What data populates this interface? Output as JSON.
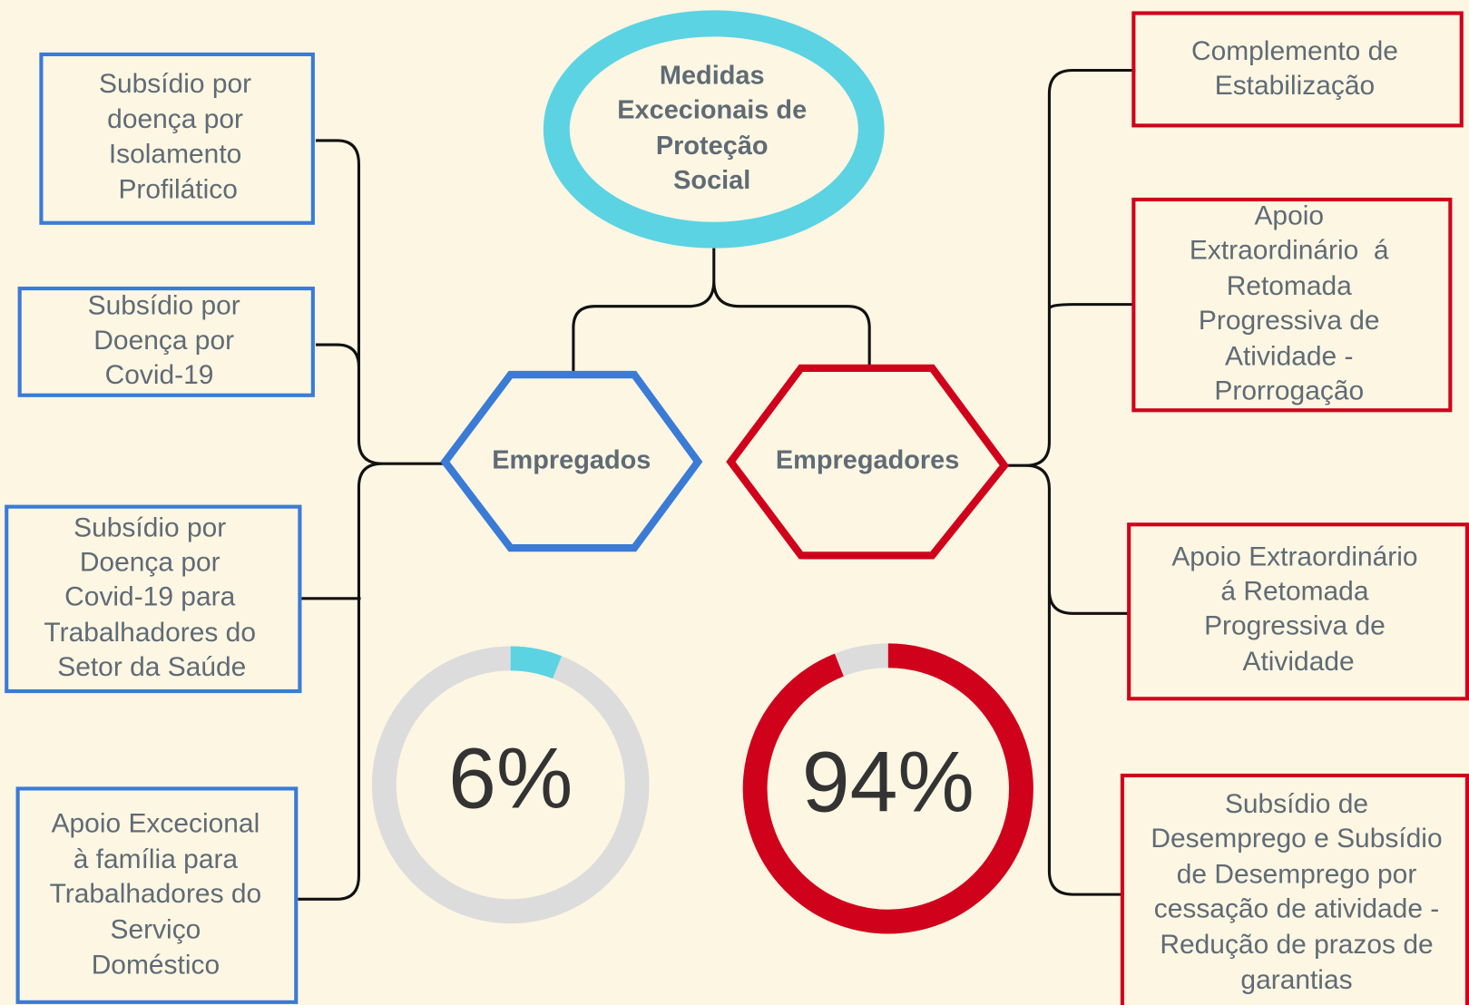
{
  "root": {
    "lines": [
      "Medidas",
      "Excecionais de",
      "Proteção",
      "Social"
    ]
  },
  "groups": [
    {
      "label": "Empregados",
      "items": [
        {
          "lines": [
            "Subsídio por",
            "doença por",
            "Isolamento",
            "Profilático"
          ]
        },
        {
          "lines": [
            "Subsídio por",
            "Doença por",
            "Covid-19"
          ]
        },
        {
          "lines": [
            "Subsídio por",
            "Doença por",
            "Covid-19 para",
            "Trabalhadores do",
            "Setor da Saúde"
          ]
        },
        {
          "lines": [
            "Apoio Excecional",
            "à família para",
            "Trabalhadores do",
            "Serviço",
            "Doméstico"
          ]
        }
      ]
    },
    {
      "label": "Empregadores",
      "items": [
        {
          "lines": [
            "Complemento de",
            "Estabilização"
          ]
        },
        {
          "lines": [
            "Apoio",
            "Extraordinário  á",
            "Retomada",
            "Progressiva de",
            "Atividade -",
            "Prorrogação"
          ]
        },
        {
          "lines": [
            "Apoio Extraordinário",
            "á Retomada",
            "Progressiva de",
            "Atividade"
          ]
        },
        {
          "lines": [
            "Subsídio de",
            "Desemprego e Subsídio",
            "de Desemprego por",
            "cessação de atividade -",
            "Redução de prazos de",
            "garantias"
          ]
        }
      ]
    }
  ],
  "gauges": [
    {
      "value": 6,
      "label": "6%",
      "color": "#5bd3e3"
    },
    {
      "value": 94,
      "label": "94%",
      "color": "#d0021b"
    }
  ]
}
